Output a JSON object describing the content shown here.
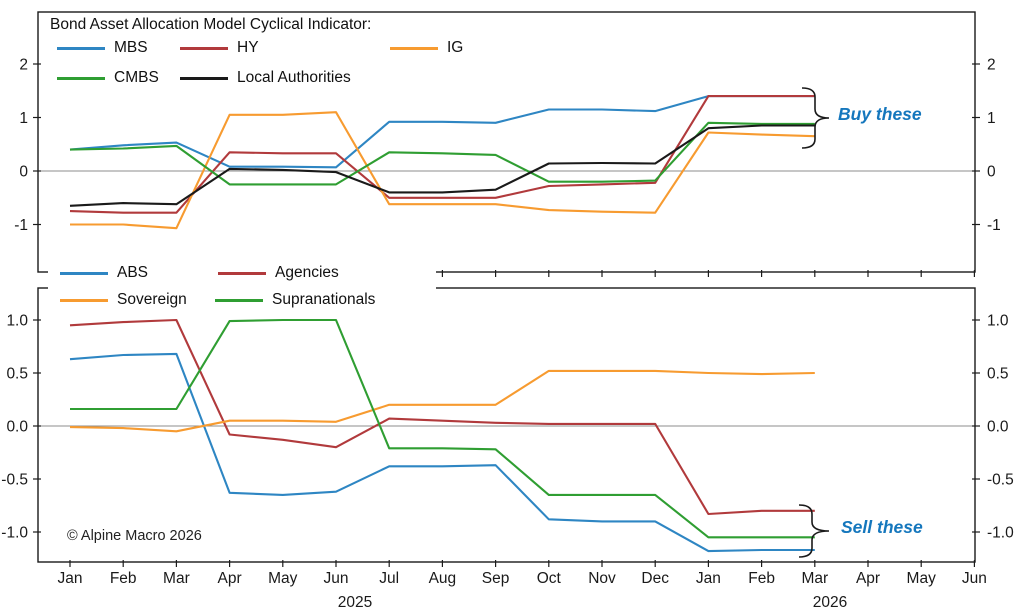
{
  "title": "Bond Asset Allocation Model Cyclical Indicator:",
  "copyright": "© Alpine Macro 2026",
  "colors": {
    "annotation_blue": "#1577bd",
    "axis": "#1a1a1a",
    "zero_line": "#8c8c8c"
  },
  "x_axis": {
    "months": [
      "Jan",
      "Feb",
      "Mar",
      "Apr",
      "May",
      "Jun",
      "Jul",
      "Aug",
      "Sep",
      "Oct",
      "Nov",
      "Dec",
      "Jan",
      "Feb",
      "Mar",
      "Apr",
      "May",
      "Jun"
    ],
    "years": [
      "2025",
      "2026"
    ]
  },
  "chart_data": [
    {
      "type": "line",
      "panel": "top",
      "title": "Bond Asset Allocation Model Cyclical Indicator:",
      "annotation": "Buy these",
      "legend_position": "top-left inside",
      "grid": false,
      "zero_line": true,
      "categories": [
        "2025-01",
        "2025-02",
        "2025-03",
        "2025-04",
        "2025-05",
        "2025-06",
        "2025-07",
        "2025-08",
        "2025-09",
        "2025-10",
        "2025-11",
        "2025-12",
        "2026-01",
        "2026-02",
        "2026-03"
      ],
      "y_tick_labels": [
        "2",
        "1",
        "0",
        "-1"
      ],
      "ylim": [
        -1.9,
        3.0
      ],
      "series": [
        {
          "name": "MBS",
          "color": "#2e86c3",
          "values": [
            0.4,
            0.48,
            0.53,
            0.08,
            0.08,
            0.07,
            0.92,
            0.92,
            0.9,
            1.15,
            1.15,
            1.12,
            1.4,
            1.4,
            1.4
          ]
        },
        {
          "name": "HY",
          "color": "#b13a3c",
          "values": [
            -0.75,
            -0.78,
            -0.78,
            0.35,
            0.33,
            0.33,
            -0.5,
            -0.5,
            -0.5,
            -0.28,
            -0.25,
            -0.22,
            1.4,
            1.4,
            1.4
          ]
        },
        {
          "name": "IG",
          "color": "#f79b30",
          "values": [
            -1.0,
            -1.0,
            -1.07,
            1.05,
            1.05,
            1.1,
            -0.62,
            -0.62,
            -0.62,
            -0.73,
            -0.76,
            -0.78,
            0.72,
            0.68,
            0.65
          ]
        },
        {
          "name": "CMBS",
          "color": "#2f9e32",
          "values": [
            0.4,
            0.42,
            0.47,
            -0.25,
            -0.25,
            -0.25,
            0.35,
            0.33,
            0.3,
            -0.2,
            -0.2,
            -0.18,
            0.9,
            0.88,
            0.88
          ]
        },
        {
          "name": "Local Authorities",
          "color": "#1a1a1a",
          "values": [
            -0.65,
            -0.6,
            -0.62,
            0.04,
            0.02,
            -0.02,
            -0.4,
            -0.4,
            -0.35,
            0.14,
            0.15,
            0.14,
            0.8,
            0.85,
            0.85
          ]
        }
      ]
    },
    {
      "type": "line",
      "panel": "bottom",
      "title": "",
      "annotation": "Sell these",
      "legend_position": "above panel left",
      "grid": false,
      "zero_line": true,
      "categories": [
        "2025-01",
        "2025-02",
        "2025-03",
        "2025-04",
        "2025-05",
        "2025-06",
        "2025-07",
        "2025-08",
        "2025-09",
        "2025-10",
        "2025-11",
        "2025-12",
        "2026-01",
        "2026-02",
        "2026-03"
      ],
      "y_tick_labels": [
        "1.0",
        "0.5",
        "0.0",
        "-0.5",
        "-1.0"
      ],
      "ylim": [
        -1.28,
        1.3
      ],
      "series": [
        {
          "name": "ABS",
          "color": "#2e86c3",
          "values": [
            0.63,
            0.67,
            0.68,
            -0.63,
            -0.65,
            -0.62,
            -0.38,
            -0.38,
            -0.37,
            -0.88,
            -0.9,
            -0.9,
            -1.18,
            -1.17,
            -1.17
          ]
        },
        {
          "name": "Agencies",
          "color": "#b13a3c",
          "values": [
            0.95,
            0.98,
            1.0,
            -0.08,
            -0.13,
            -0.2,
            0.07,
            0.05,
            0.03,
            0.02,
            0.02,
            0.02,
            -0.83,
            -0.8,
            -0.8
          ]
        },
        {
          "name": "Sovereign",
          "color": "#f79b30",
          "values": [
            -0.01,
            -0.02,
            -0.05,
            0.05,
            0.05,
            0.04,
            0.2,
            0.2,
            0.2,
            0.52,
            0.52,
            0.52,
            0.5,
            0.49,
            0.5
          ]
        },
        {
          "name": "Supranationals",
          "color": "#2f9e32",
          "values": [
            0.16,
            0.16,
            0.16,
            0.99,
            1.0,
            1.0,
            -0.21,
            -0.21,
            -0.22,
            -0.65,
            -0.65,
            -0.65,
            -1.05,
            -1.05,
            -1.05
          ]
        }
      ]
    }
  ]
}
